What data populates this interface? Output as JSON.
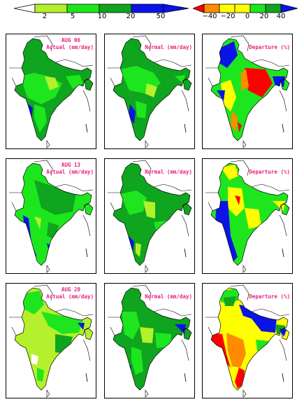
{
  "legend_rain": {
    "ticks": [
      "2",
      "5",
      "10",
      "20",
      "50"
    ],
    "colors": [
      "#ffffff",
      "#b4f02c",
      "#1ee61e",
      "#0fa51e",
      "#0a14e6",
      "#ffffff"
    ]
  },
  "legend_dep": {
    "ticks": [
      "−40",
      "−20",
      "0",
      "20",
      "40"
    ],
    "colors": [
      "#ff0000",
      "#ff8c00",
      "#ffff00",
      "#1ee61e",
      "#0fa51e",
      "#0a14e6"
    ]
  },
  "rows": [
    {
      "date": "AUG 06",
      "actual": "Actual (mm/day)",
      "normal": "Normal (mm/day)",
      "departure": "Departure (%)"
    },
    {
      "date": "AUG 13",
      "actual": "Actual (mm/day)",
      "normal": "Normal (mm/day)",
      "departure": "Departure (%)"
    },
    {
      "date": "AUG 20",
      "actual": "Actual (mm/day)",
      "normal": "Normal (mm/day)",
      "departure": "Departure (%)"
    }
  ],
  "palette": {
    "light_green": "#b4f02c",
    "green": "#1ee61e",
    "dark_green": "#0fa51e",
    "blue": "#0a14e6",
    "yellow": "#ffff00",
    "orange": "#ff8c00",
    "red": "#ff0000",
    "white": "#ffffff"
  }
}
